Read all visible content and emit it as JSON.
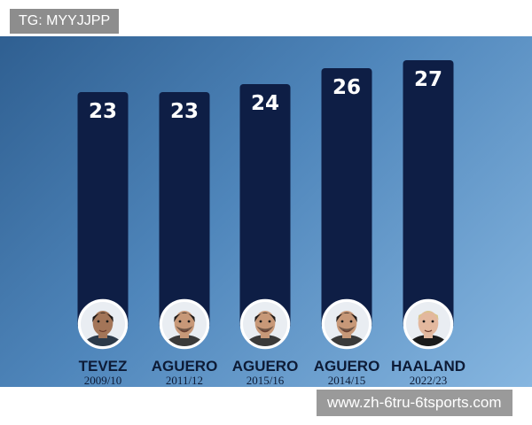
{
  "watermark_top": "TG: MYYJJPP",
  "watermark_bottom": "www.zh-6tru-6tsports.com",
  "colors": {
    "bar": "#0e1e45",
    "background_start": "#2f5f91",
    "background_end": "#86b6e0",
    "label_text": "#0d1b36"
  },
  "chart_data": {
    "type": "bar",
    "categories": [
      "TEVEZ",
      "AGUERO",
      "AGUERO",
      "AGUERO",
      "HAALAND"
    ],
    "seasons": [
      "2009/10",
      "2011/12",
      "2015/16",
      "2014/15",
      "2022/23"
    ],
    "values": [
      23,
      23,
      24,
      26,
      27
    ],
    "value_labels": [
      "23",
      "23",
      "24",
      "26",
      "27"
    ],
    "avatar_icons": [
      "tevez-portrait-icon",
      "aguero-portrait-icon",
      "aguero-portrait-icon",
      "aguero-portrait-icon",
      "haaland-portrait-icon"
    ],
    "title": "",
    "xlabel": "",
    "ylabel": "",
    "ylim": [
      0,
      28
    ],
    "grid": false,
    "legend": "none"
  }
}
